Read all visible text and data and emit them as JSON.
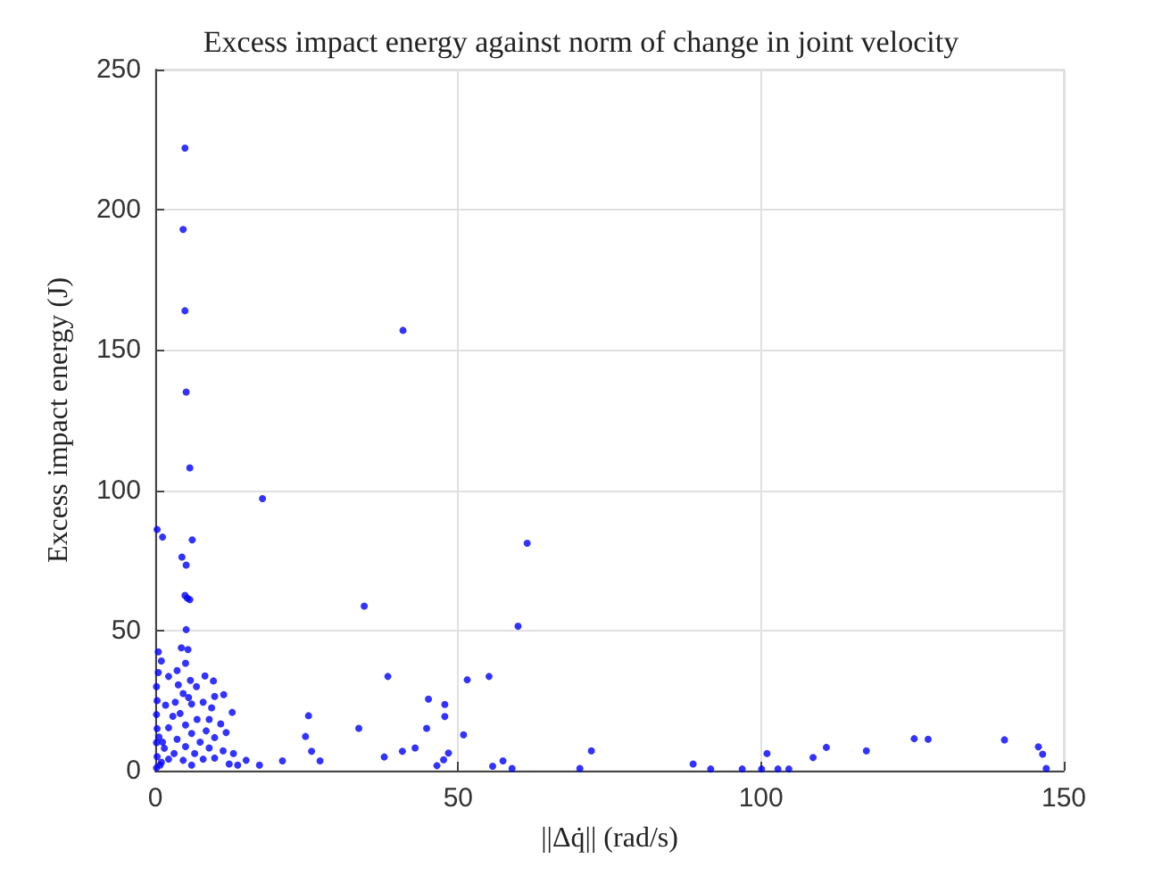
{
  "chart_data": {
    "type": "scatter",
    "title": "Excess impact energy against norm of change in joint velocity",
    "xlabel": "||Δq̇|| (rad/s)",
    "ylabel": "Excess impact energy (J)",
    "x": [
      4.9,
      4.6,
      4.9,
      5.1,
      5.7,
      17.7,
      0.3,
      1.2,
      6.1,
      4.4,
      5.1,
      4.9,
      5.3,
      5.7,
      5.1,
      34.5,
      38.4,
      40.9,
      61.4,
      59.9,
      51.5,
      55.1,
      45.1,
      47.8,
      47.8,
      44.8,
      50.9,
      42.9,
      40.8,
      37.8,
      48.4,
      47.6,
      46.5,
      55.7,
      57.4,
      58.9,
      72,
      70.1,
      88.8,
      91.7,
      96.9,
      100.1,
      101,
      102.8,
      104.6,
      108.6,
      110.8,
      117.4,
      125.3,
      127.6,
      140.2,
      145.8,
      146.5,
      147.1,
      8.2,
      9.6,
      11.3,
      12.7,
      11.7,
      12.9,
      15,
      17.2,
      21,
      25.3,
      24.8,
      25.8,
      27.2,
      33.6,
      0.5,
      1,
      4.3,
      5.4,
      5,
      3.6,
      2.2,
      3.8,
      5.8,
      4.6,
      6.8,
      5.5,
      3.3,
      1.7,
      6,
      7.9,
      9.8,
      9.3,
      4.1,
      2.9,
      6.9,
      8.9,
      10.8,
      5,
      2.2,
      8.4,
      6,
      9.8,
      3.6,
      7.4,
      1.2,
      5,
      8.9,
      11.2,
      6.5,
      3.1,
      9.8,
      7.9,
      4.6,
      2.2,
      12.2,
      13.6,
      6,
      0.8,
      0.2,
      0.3,
      0.2,
      0.3,
      0.2,
      0.3,
      0.2,
      0.5,
      0.6,
      1,
      1.5
    ],
    "values": [
      222,
      193,
      164,
      135,
      108,
      97,
      86,
      83.3,
      82.3,
      76.2,
      73.3,
      62.5,
      61.5,
      61,
      50.3,
      58.7,
      33.6,
      157,
      81.1,
      51.5,
      32.4,
      33.6,
      25.5,
      23.6,
      19.3,
      15.1,
      12.8,
      8.1,
      6.9,
      4.9,
      6.3,
      3.9,
      1.8,
      1.6,
      3.5,
      0.8,
      7.1,
      0.8,
      2.4,
      0.6,
      0.6,
      0.6,
      6.1,
      0.6,
      0.6,
      4.7,
      8.3,
      7.1,
      11.4,
      11.2,
      11,
      8.5,
      5.9,
      0.8,
      33.8,
      32,
      27.1,
      20.8,
      13.6,
      6.1,
      3.7,
      2,
      3.5,
      19.6,
      12.2,
      6.9,
      3.5,
      15.1,
      42.4,
      39.1,
      43.8,
      43.2,
      38.3,
      35.7,
      33.6,
      30.6,
      32.2,
      27.5,
      30,
      26.1,
      24.4,
      23.4,
      23.8,
      24.4,
      26.5,
      22.4,
      20.4,
      19.4,
      18.3,
      18.3,
      16.7,
      16.3,
      15.3,
      14.2,
      13.3,
      11.8,
      11.2,
      10.2,
      10.2,
      8.6,
      8.1,
      7.1,
      6.1,
      6.1,
      4.5,
      4.1,
      3.7,
      4.1,
      2.4,
      2,
      2,
      2,
      30,
      25,
      20,
      15,
      10,
      5,
      1,
      35,
      12,
      3,
      8
    ],
    "color": "#0000ff",
    "marker": "circle",
    "xlim": [
      0,
      150
    ],
    "xticks": [
      0,
      50,
      100,
      150
    ],
    "ylim": [
      0,
      250
    ],
    "yticks": [
      0,
      50,
      100,
      150,
      200,
      250
    ],
    "grid": true
  }
}
